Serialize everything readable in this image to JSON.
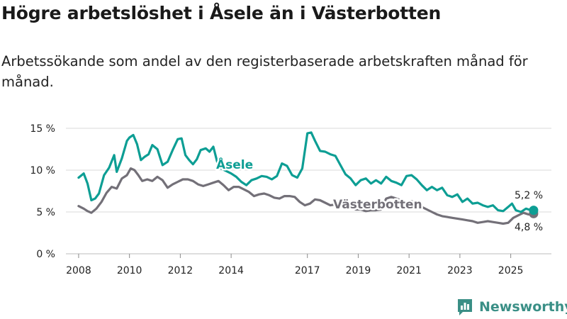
{
  "title": "Högre arbetslöshet i Åsele än i Västerbotten",
  "subtitle": "Arbetssökande som andel av den registerbaserade arbetskraften månad för månad.",
  "brand": "Newsworthy",
  "colors": {
    "asele": "#0d9e94",
    "vasterbotten": "#737078",
    "grid": "#d9d9d9",
    "brand": "#3a8f86"
  },
  "chart_data": {
    "type": "line",
    "title": "Högre arbetslöshet i Åsele än i Västerbotten",
    "xlabel": "",
    "ylabel": "",
    "xlim": [
      2007.5,
      2026.6
    ],
    "ylim": [
      0,
      15
    ],
    "x_ticks": [
      2008,
      2010,
      2012,
      2014,
      2017,
      2019,
      2021,
      2023,
      2025
    ],
    "y_ticks": [
      {
        "value": 0,
        "label": "0 %"
      },
      {
        "value": 5,
        "label": "5 %"
      },
      {
        "value": 10,
        "label": "10 %"
      },
      {
        "value": 15,
        "label": "15 %"
      }
    ],
    "series": [
      {
        "name": "Åsele",
        "end_label": "5,2 %",
        "x": [
          2008.0,
          2008.2,
          2008.35,
          2008.5,
          2008.65,
          2008.8,
          2009.0,
          2009.2,
          2009.4,
          2009.5,
          2009.7,
          2009.9,
          2010.0,
          2010.15,
          2010.3,
          2010.45,
          2010.6,
          2010.75,
          2010.9,
          2011.1,
          2011.3,
          2011.5,
          2011.7,
          2011.9,
          2012.05,
          2012.2,
          2012.35,
          2012.5,
          2012.65,
          2012.8,
          2013.0,
          2013.15,
          2013.3,
          2013.45,
          2013.6,
          2014.0,
          2014.2,
          2014.4,
          2014.6,
          2014.8,
          2015.0,
          2015.2,
          2015.4,
          2015.6,
          2015.8,
          2016.0,
          2016.2,
          2016.4,
          2016.6,
          2016.8,
          2017.0,
          2017.15,
          2017.3,
          2017.5,
          2017.7,
          2017.9,
          2018.1,
          2018.3,
          2018.5,
          2018.7,
          2018.9,
          2019.1,
          2019.3,
          2019.5,
          2019.7,
          2019.9,
          2020.1,
          2020.3,
          2020.5,
          2020.7,
          2020.9,
          2021.1,
          2021.3,
          2021.5,
          2021.7,
          2021.9,
          2022.1,
          2022.3,
          2022.5,
          2022.7,
          2022.9,
          2023.1,
          2023.3,
          2023.5,
          2023.7,
          2023.9,
          2024.1,
          2024.3,
          2024.5,
          2024.7,
          2024.9,
          2025.05,
          2025.2,
          2025.4,
          2025.6,
          2025.8,
          2025.9
        ],
        "values": [
          9.1,
          9.6,
          8.4,
          6.4,
          6.6,
          7.2,
          9.4,
          10.3,
          11.8,
          9.8,
          11.4,
          13.5,
          13.9,
          14.2,
          13.1,
          11.2,
          11.6,
          11.9,
          13.0,
          12.5,
          10.6,
          11.0,
          12.4,
          13.7,
          13.8,
          11.8,
          11.2,
          10.7,
          11.3,
          12.4,
          12.6,
          12.2,
          12.8,
          11.0,
          10.2,
          9.6,
          9.2,
          8.6,
          8.2,
          8.8,
          9.0,
          9.3,
          9.2,
          8.9,
          9.3,
          10.8,
          10.5,
          9.4,
          9.1,
          10.2,
          14.4,
          14.5,
          13.5,
          12.3,
          12.2,
          11.9,
          11.7,
          10.6,
          9.5,
          9.0,
          8.2,
          8.8,
          9.0,
          8.4,
          8.8,
          8.4,
          9.2,
          8.7,
          8.5,
          8.2,
          9.3,
          9.4,
          8.9,
          8.2,
          7.6,
          8.0,
          7.6,
          7.9,
          7.0,
          6.8,
          7.1,
          6.2,
          6.6,
          6.0,
          6.1,
          5.8,
          5.6,
          5.8,
          5.2,
          5.1,
          5.6,
          6.0,
          5.2,
          5.0,
          5.4,
          5.2,
          5.2
        ]
      },
      {
        "name": "Västerbotten",
        "end_label": "4,8 %",
        "x": [
          2008.0,
          2008.2,
          2008.35,
          2008.5,
          2008.7,
          2008.9,
          2009.1,
          2009.3,
          2009.5,
          2009.7,
          2009.9,
          2010.05,
          2010.2,
          2010.35,
          2010.5,
          2010.7,
          2010.9,
          2011.1,
          2011.3,
          2011.5,
          2011.7,
          2011.9,
          2012.1,
          2012.3,
          2012.5,
          2012.7,
          2012.9,
          2013.1,
          2013.3,
          2013.5,
          2013.7,
          2013.9,
          2014.1,
          2014.3,
          2014.5,
          2014.7,
          2014.9,
          2015.1,
          2015.3,
          2015.5,
          2015.7,
          2015.9,
          2016.1,
          2016.3,
          2016.5,
          2016.7,
          2016.9,
          2017.1,
          2017.3,
          2017.5,
          2017.7,
          2017.9,
          2018.1,
          2018.3,
          2018.5,
          2018.7,
          2018.9,
          2019.1,
          2019.3,
          2019.5,
          2019.7,
          2019.9,
          2020.1,
          2020.3,
          2020.5,
          2020.7,
          2020.9,
          2021.1,
          2021.3,
          2021.5,
          2021.7,
          2021.9,
          2022.1,
          2022.3,
          2022.5,
          2022.7,
          2022.9,
          2023.1,
          2023.3,
          2023.5,
          2023.7,
          2023.9,
          2024.1,
          2024.3,
          2024.5,
          2024.7,
          2024.9,
          2025.1,
          2025.3,
          2025.5,
          2025.7,
          2025.9
        ],
        "values": [
          5.7,
          5.4,
          5.1,
          4.9,
          5.4,
          6.2,
          7.3,
          8.0,
          7.8,
          9.0,
          9.4,
          10.2,
          10.0,
          9.4,
          8.7,
          8.9,
          8.7,
          9.2,
          8.8,
          7.9,
          8.3,
          8.6,
          8.9,
          8.9,
          8.7,
          8.3,
          8.1,
          8.3,
          8.5,
          8.7,
          8.2,
          7.6,
          8.0,
          8.0,
          7.7,
          7.4,
          6.9,
          7.1,
          7.2,
          7.0,
          6.7,
          6.6,
          6.9,
          6.9,
          6.8,
          6.2,
          5.8,
          6.0,
          6.5,
          6.4,
          6.1,
          5.8,
          5.9,
          5.7,
          5.6,
          5.5,
          5.3,
          5.3,
          5.1,
          5.2,
          5.2,
          5.3,
          6.6,
          6.8,
          6.6,
          6.4,
          6.1,
          6.3,
          6.0,
          5.6,
          5.3,
          5.0,
          4.7,
          4.5,
          4.4,
          4.3,
          4.2,
          4.1,
          4.0,
          3.9,
          3.7,
          3.8,
          3.9,
          3.8,
          3.7,
          3.6,
          3.7,
          4.3,
          4.6,
          4.9,
          4.7,
          4.8
        ]
      }
    ]
  }
}
